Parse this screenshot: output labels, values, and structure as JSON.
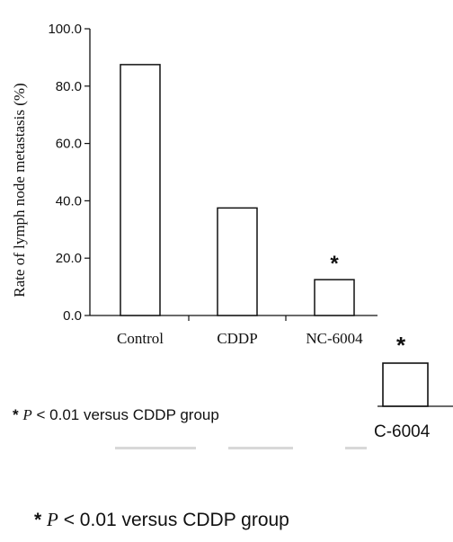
{
  "chart_data": {
    "type": "bar",
    "categories": [
      "Control",
      "CDDP",
      "NC-6004"
    ],
    "values": [
      87.5,
      37.5,
      12.5
    ],
    "ylabel": "Rate of lymph node metastasis (%)",
    "xlabel": "",
    "ylim": [
      0,
      100
    ],
    "yticks": [
      "0.0",
      "20.0",
      "40.0",
      "60.0",
      "80.0",
      "100.0"
    ],
    "grid": false,
    "annotations": [
      {
        "category": "NC-6004",
        "text": "*"
      }
    ],
    "bar_fill": "#ffffff",
    "bar_stroke": "#111111"
  },
  "footnote": {
    "star": "*",
    "p": "P",
    "text": "< 0.01 versus CDDP group"
  },
  "overlay": {
    "star": "*",
    "label": "C-6004"
  }
}
